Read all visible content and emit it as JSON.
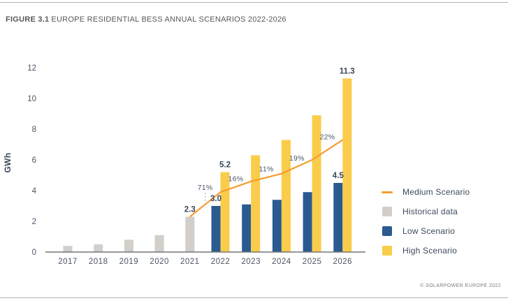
{
  "header": {
    "figure_label": "FIGURE 3.1",
    "title": "EUROPE RESIDENTIAL BESS ANNUAL SCENARIOS 2022-2026"
  },
  "footer": {
    "copyright": "© SOLARPOWER EUROPE 2022"
  },
  "legend": {
    "items": [
      {
        "label": "Medium Scenario",
        "marker": "line",
        "color": "#F59C30"
      },
      {
        "label": "Historical data",
        "marker": "square",
        "color": "#D2CEC9"
      },
      {
        "label": "Low Scenario",
        "marker": "square",
        "color": "#2A5A90"
      },
      {
        "label": "High Scenario",
        "marker": "square",
        "color": "#F9CD4B"
      }
    ]
  },
  "chart_data": {
    "type": "bar",
    "subtype": "grouped bars with growth line overlay",
    "title": "FIGURE 3.1 EUROPE RESIDENTIAL BESS ANNUAL SCENARIOS 2022-2026",
    "xlabel": "",
    "ylabel": "GWh",
    "ylim": [
      0,
      12
    ],
    "yticks": [
      0,
      2,
      4,
      6,
      8,
      10,
      12
    ],
    "grid": false,
    "legend_position": "right",
    "categories": [
      2017,
      2018,
      2019,
      2020,
      2021,
      2022,
      2023,
      2024,
      2025,
      2026
    ],
    "series": [
      {
        "name": "Historical data",
        "type": "bar",
        "align": "center",
        "color": "#D2CEC9",
        "x": [
          2017,
          2018,
          2019,
          2020,
          2021
        ],
        "values": [
          0.4,
          0.5,
          0.8,
          1.1,
          2.3
        ]
      },
      {
        "name": "Low Scenario",
        "type": "bar",
        "align": "left",
        "color": "#2A5A90",
        "x": [
          2022,
          2023,
          2024,
          2025,
          2026
        ],
        "values": [
          3.0,
          3.1,
          3.4,
          3.9,
          4.5
        ]
      },
      {
        "name": "High Scenario",
        "type": "bar",
        "align": "right",
        "color": "#F9CD4B",
        "x": [
          2022,
          2023,
          2024,
          2025,
          2026
        ],
        "values": [
          5.2,
          6.3,
          7.3,
          8.9,
          11.3
        ]
      },
      {
        "name": "Medium Scenario",
        "type": "line",
        "color": "#F59C30",
        "x": [
          2021,
          2022,
          2023,
          2024,
          2025,
          2026
        ],
        "values": [
          2.3,
          3.9,
          4.6,
          5.1,
          6.0,
          7.3
        ]
      }
    ],
    "value_labels": [
      {
        "x": 2021,
        "series": "Historical data",
        "text": "2.3"
      },
      {
        "x": 2022,
        "series": "Low Scenario",
        "text": "3.0"
      },
      {
        "x": 2022,
        "series": "High Scenario",
        "text": "5.2"
      },
      {
        "x": 2026,
        "series": "Low Scenario",
        "text": "4.5"
      },
      {
        "x": 2026,
        "series": "High Scenario",
        "text": "11.3"
      }
    ],
    "growth_labels": [
      {
        "text": "71%",
        "between": [
          2021,
          2022
        ],
        "dy": 21,
        "connector": true
      },
      {
        "text": "16%",
        "between": [
          2022,
          2023
        ],
        "dy": 8
      },
      {
        "text": "11%",
        "between": [
          2023,
          2024
        ],
        "dy": 9
      },
      {
        "text": "19%",
        "between": [
          2024,
          2025
        ],
        "dy": 9
      },
      {
        "text": "22%",
        "between": [
          2025,
          2026
        ],
        "dy": 15
      }
    ]
  }
}
